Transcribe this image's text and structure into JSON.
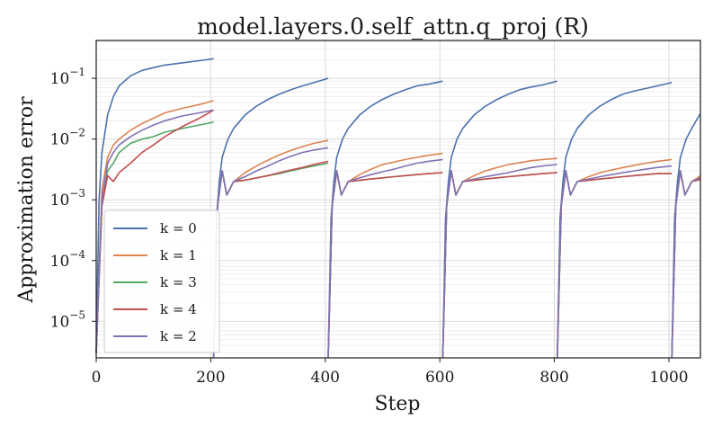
{
  "chart_data": {
    "type": "line",
    "title": "model.layers.0.self_attn.q_proj (R)",
    "xlabel": "Step",
    "ylabel": "Approximation error",
    "xlim": [
      0,
      1055
    ],
    "ylim": [
      2.5e-06,
      0.42
    ],
    "yscale": "log",
    "x_ticks": [
      0,
      200,
      400,
      600,
      800,
      1000
    ],
    "y_ticks": [
      {
        "base": "10",
        "exp": "−5",
        "value": 1e-05
      },
      {
        "base": "10",
        "exp": "−4",
        "value": 0.0001
      },
      {
        "base": "10",
        "exp": "−3",
        "value": 0.001
      },
      {
        "base": "10",
        "exp": "−2",
        "value": 0.01
      },
      {
        "base": "10",
        "exp": "−1",
        "value": 0.1
      }
    ],
    "grid": true,
    "legend_position": "lower-left",
    "reset_interval": 200,
    "series": [
      {
        "name": "k = 0",
        "color": "#4c72b0",
        "segments": [
          {
            "x": [
              0,
              5,
              10,
              20,
              30,
              40,
              60,
              80,
              100,
              120,
              150,
              180,
              205
            ],
            "y": [
              3e-06,
              0.001,
              0.006,
              0.025,
              0.05,
              0.075,
              0.11,
              0.135,
              0.15,
              0.165,
              0.18,
              0.195,
              0.21
            ]
          },
          {
            "x": [
              205,
              210,
              215,
              220,
              230,
              240,
              260,
              280,
              300,
              320,
              340,
              360,
              380,
              405
            ],
            "y": [
              2.5e-06,
              0.0005,
              0.002,
              0.005,
              0.01,
              0.015,
              0.025,
              0.035,
              0.045,
              0.055,
              0.065,
              0.075,
              0.085,
              0.1
            ]
          },
          {
            "x": [
              405,
              410,
              415,
              420,
              430,
              440,
              460,
              480,
              500,
              520,
              540,
              560,
              580,
              605
            ],
            "y": [
              2.5e-06,
              0.0005,
              0.002,
              0.005,
              0.01,
              0.015,
              0.025,
              0.035,
              0.045,
              0.055,
              0.065,
              0.075,
              0.08,
              0.09
            ]
          },
          {
            "x": [
              605,
              610,
              615,
              620,
              630,
              640,
              660,
              680,
              700,
              720,
              740,
              760,
              780,
              805
            ],
            "y": [
              2.5e-06,
              0.0005,
              0.002,
              0.005,
              0.01,
              0.015,
              0.025,
              0.035,
              0.045,
              0.055,
              0.065,
              0.072,
              0.078,
              0.09
            ]
          },
          {
            "x": [
              805,
              810,
              815,
              820,
              830,
              840,
              860,
              880,
              900,
              920,
              940,
              960,
              980,
              1005
            ],
            "y": [
              2.5e-06,
              0.0005,
              0.002,
              0.005,
              0.01,
              0.015,
              0.025,
              0.035,
              0.045,
              0.055,
              0.062,
              0.068,
              0.075,
              0.085
            ]
          },
          {
            "x": [
              1005,
              1010,
              1015,
              1020,
              1030,
              1040,
              1050,
              1055
            ],
            "y": [
              2.5e-06,
              0.0005,
              0.002,
              0.005,
              0.01,
              0.015,
              0.022,
              0.026
            ]
          }
        ]
      },
      {
        "name": "k = 1",
        "color": "#dd8452",
        "segments": [
          {
            "x": [
              0,
              10,
              20,
              30,
              40,
              60,
              80,
              100,
              120,
              150,
              180,
              205
            ],
            "y": [
              3e-06,
              0.0015,
              0.005,
              0.008,
              0.01,
              0.014,
              0.018,
              0.022,
              0.027,
              0.032,
              0.037,
              0.043
            ]
          },
          {
            "x": [
              205,
              212,
              220,
              228,
              240,
              260,
              280,
              300,
              320,
              340,
              360,
              380,
              405
            ],
            "y": [
              2.5e-06,
              0.0008,
              0.003,
              0.0012,
              0.002,
              0.0028,
              0.0036,
              0.0045,
              0.0055,
              0.0065,
              0.0075,
              0.0085,
              0.0095
            ]
          },
          {
            "x": [
              405,
              412,
              420,
              428,
              440,
              460,
              480,
              500,
              520,
              540,
              560,
              580,
              605
            ],
            "y": [
              2.5e-06,
              0.0008,
              0.003,
              0.0012,
              0.002,
              0.0026,
              0.0032,
              0.0038,
              0.0042,
              0.0046,
              0.005,
              0.0054,
              0.0058
            ]
          },
          {
            "x": [
              605,
              612,
              620,
              628,
              640,
              660,
              680,
              700,
              720,
              740,
              760,
              780,
              805
            ],
            "y": [
              2.5e-06,
              0.0008,
              0.003,
              0.0012,
              0.002,
              0.0025,
              0.003,
              0.0034,
              0.0038,
              0.0041,
              0.0044,
              0.0046,
              0.0048
            ]
          },
          {
            "x": [
              805,
              812,
              820,
              828,
              840,
              860,
              880,
              900,
              920,
              940,
              960,
              980,
              1005
            ],
            "y": [
              2.5e-06,
              0.0008,
              0.003,
              0.0012,
              0.002,
              0.0024,
              0.0028,
              0.0031,
              0.0034,
              0.0037,
              0.004,
              0.0043,
              0.0046
            ]
          },
          {
            "x": [
              1005,
              1012,
              1020,
              1028,
              1040,
              1050,
              1055
            ],
            "y": [
              2.5e-06,
              0.0008,
              0.003,
              0.0012,
              0.002,
              0.0023,
              0.0025
            ]
          }
        ]
      },
      {
        "name": "k = 3",
        "color": "#55a868",
        "segments": [
          {
            "x": [
              0,
              10,
              20,
              30,
              40,
              60,
              80,
              100,
              120,
              150,
              180,
              205
            ],
            "y": [
              3e-06,
              0.001,
              0.003,
              0.004,
              0.006,
              0.0085,
              0.01,
              0.011,
              0.013,
              0.015,
              0.017,
              0.019
            ]
          },
          {
            "x": [
              205,
              212,
              220,
              228,
              240,
              260,
              280,
              300,
              320,
              340,
              360,
              380,
              405
            ],
            "y": [
              2.5e-06,
              0.0008,
              0.003,
              0.0012,
              0.002,
              0.0021,
              0.0023,
              0.0025,
              0.0027,
              0.003,
              0.0033,
              0.0036,
              0.004
            ]
          },
          {
            "x": [
              405,
              412,
              420,
              428,
              440,
              460,
              480,
              500,
              520,
              540,
              560,
              580,
              605
            ],
            "y": [
              2.5e-06,
              0.0008,
              0.003,
              0.0012,
              0.002,
              0.0021,
              0.0022,
              0.0023,
              0.0024,
              0.0025,
              0.0026,
              0.0027,
              0.0028
            ]
          },
          {
            "x": [
              605,
              612,
              620,
              628,
              640,
              660,
              680,
              700,
              720,
              740,
              760,
              780,
              805
            ],
            "y": [
              2.5e-06,
              0.0008,
              0.003,
              0.0012,
              0.002,
              0.0021,
              0.0022,
              0.0023,
              0.0024,
              0.0025,
              0.0026,
              0.0027,
              0.0028
            ]
          },
          {
            "x": [
              805,
              812,
              820,
              828,
              840,
              860,
              880,
              900,
              920,
              940,
              960,
              980,
              1005
            ],
            "y": [
              2.5e-06,
              0.0008,
              0.003,
              0.0012,
              0.002,
              0.0021,
              0.0022,
              0.0023,
              0.0024,
              0.0025,
              0.0026,
              0.0027,
              0.0027
            ]
          },
          {
            "x": [
              1005,
              1012,
              1020,
              1028,
              1040,
              1050,
              1055
            ],
            "y": [
              2.5e-06,
              0.0008,
              0.003,
              0.0012,
              0.002,
              0.0021,
              0.0022
            ]
          }
        ]
      },
      {
        "name": "k = 4",
        "color": "#c44e52",
        "segments": [
          {
            "x": [
              0,
              10,
              20,
              30,
              40,
              60,
              80,
              100,
              120,
              150,
              180,
              205
            ],
            "y": [
              3e-06,
              0.0008,
              0.0025,
              0.002,
              0.0028,
              0.004,
              0.006,
              0.008,
              0.011,
              0.016,
              0.022,
              0.03
            ]
          },
          {
            "x": [
              205,
              212,
              220,
              228,
              240,
              260,
              280,
              300,
              320,
              340,
              360,
              380,
              405
            ],
            "y": [
              2.5e-06,
              0.0008,
              0.003,
              0.0012,
              0.002,
              0.0021,
              0.0023,
              0.0025,
              0.0028,
              0.0031,
              0.0034,
              0.0038,
              0.0043
            ]
          },
          {
            "x": [
              405,
              412,
              420,
              428,
              440,
              460,
              480,
              500,
              520,
              540,
              560,
              580,
              605
            ],
            "y": [
              2.5e-06,
              0.0008,
              0.003,
              0.0012,
              0.002,
              0.0021,
              0.0022,
              0.0023,
              0.0024,
              0.0025,
              0.0026,
              0.0027,
              0.0028
            ]
          },
          {
            "x": [
              605,
              612,
              620,
              628,
              640,
              660,
              680,
              700,
              720,
              740,
              760,
              780,
              805
            ],
            "y": [
              2.5e-06,
              0.0008,
              0.003,
              0.0012,
              0.002,
              0.0021,
              0.0022,
              0.0023,
              0.0024,
              0.0025,
              0.0026,
              0.0027,
              0.0028
            ]
          },
          {
            "x": [
              805,
              812,
              820,
              828,
              840,
              860,
              880,
              900,
              920,
              940,
              960,
              980,
              1005
            ],
            "y": [
              2.5e-06,
              0.0008,
              0.003,
              0.0012,
              0.002,
              0.0021,
              0.0022,
              0.0023,
              0.0024,
              0.0025,
              0.0026,
              0.0027,
              0.0027
            ]
          },
          {
            "x": [
              1005,
              1012,
              1020,
              1028,
              1040,
              1050,
              1055
            ],
            "y": [
              2.5e-06,
              0.0008,
              0.003,
              0.0012,
              0.002,
              0.0021,
              0.0022
            ]
          }
        ]
      },
      {
        "name": "k = 2",
        "color": "#8172b3",
        "segments": [
          {
            "x": [
              0,
              10,
              20,
              30,
              40,
              60,
              80,
              100,
              120,
              150,
              180,
              205
            ],
            "y": [
              3e-06,
              0.001,
              0.004,
              0.006,
              0.008,
              0.011,
              0.014,
              0.017,
              0.02,
              0.024,
              0.027,
              0.03
            ]
          },
          {
            "x": [
              205,
              212,
              220,
              228,
              240,
              260,
              280,
              300,
              320,
              340,
              360,
              380,
              405
            ],
            "y": [
              2.5e-06,
              0.0008,
              0.003,
              0.0012,
              0.002,
              0.0024,
              0.003,
              0.0036,
              0.0044,
              0.0052,
              0.006,
              0.0066,
              0.0072
            ]
          },
          {
            "x": [
              405,
              412,
              420,
              428,
              440,
              460,
              480,
              500,
              520,
              540,
              560,
              580,
              605
            ],
            "y": [
              2.5e-06,
              0.0008,
              0.003,
              0.0012,
              0.002,
              0.0023,
              0.0026,
              0.0029,
              0.0032,
              0.0036,
              0.004,
              0.0043,
              0.0046
            ]
          },
          {
            "x": [
              605,
              612,
              620,
              628,
              640,
              660,
              680,
              700,
              720,
              740,
              760,
              780,
              805
            ],
            "y": [
              2.5e-06,
              0.0008,
              0.003,
              0.0012,
              0.002,
              0.0022,
              0.0024,
              0.0026,
              0.0028,
              0.0031,
              0.0034,
              0.0036,
              0.0038
            ]
          },
          {
            "x": [
              805,
              812,
              820,
              828,
              840,
              860,
              880,
              900,
              920,
              940,
              960,
              980,
              1005
            ],
            "y": [
              2.5e-06,
              0.0008,
              0.003,
              0.0012,
              0.002,
              0.0022,
              0.0024,
              0.0026,
              0.0028,
              0.003,
              0.0032,
              0.0034,
              0.0036
            ]
          },
          {
            "x": [
              1005,
              1012,
              1020,
              1028,
              1040,
              1050,
              1055
            ],
            "y": [
              2.5e-06,
              0.0008,
              0.003,
              0.0012,
              0.002,
              0.0022,
              0.0023
            ]
          }
        ]
      }
    ]
  }
}
